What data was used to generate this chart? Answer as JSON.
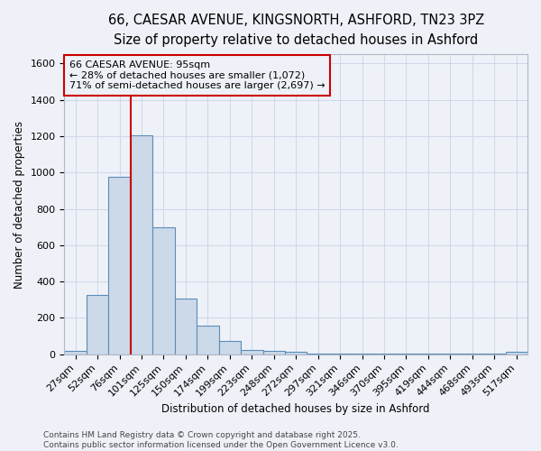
{
  "title_line1": "66, CAESAR AVENUE, KINGSNORTH, ASHFORD, TN23 3PZ",
  "title_line2": "Size of property relative to detached houses in Ashford",
  "xlabel": "Distribution of detached houses by size in Ashford",
  "ylabel": "Number of detached properties",
  "bar_color": "#ccd9e8",
  "bar_edge_color": "#5b8db8",
  "categories": [
    "27sqm",
    "52sqm",
    "76sqm",
    "101sqm",
    "125sqm",
    "150sqm",
    "174sqm",
    "199sqm",
    "223sqm",
    "248sqm",
    "272sqm",
    "297sqm",
    "321sqm",
    "346sqm",
    "370sqm",
    "395sqm",
    "419sqm",
    "444sqm",
    "468sqm",
    "493sqm",
    "517sqm"
  ],
  "values": [
    20,
    325,
    975,
    1205,
    700,
    305,
    160,
    75,
    25,
    18,
    12,
    5,
    5,
    3,
    3,
    3,
    3,
    3,
    3,
    3,
    12
  ],
  "vline_x_index": 2.5,
  "vline_color": "#cc0000",
  "annotation_text": "66 CAESAR AVENUE: 95sqm\n← 28% of detached houses are smaller (1,072)\n71% of semi-detached houses are larger (2,697) →",
  "ylim": [
    0,
    1650
  ],
  "yticks": [
    0,
    200,
    400,
    600,
    800,
    1000,
    1200,
    1400,
    1600
  ],
  "footer_line1": "Contains HM Land Registry data © Crown copyright and database right 2025.",
  "footer_line2": "Contains public sector information licensed under the Open Government Licence v3.0.",
  "bg_color": "#eef2f8",
  "grid_color": "#d0d8e8",
  "title_fontsize": 10.5,
  "subtitle_fontsize": 9.5,
  "axis_label_fontsize": 8.5,
  "tick_fontsize": 8,
  "annotation_fontsize": 8,
  "footer_fontsize": 6.5
}
